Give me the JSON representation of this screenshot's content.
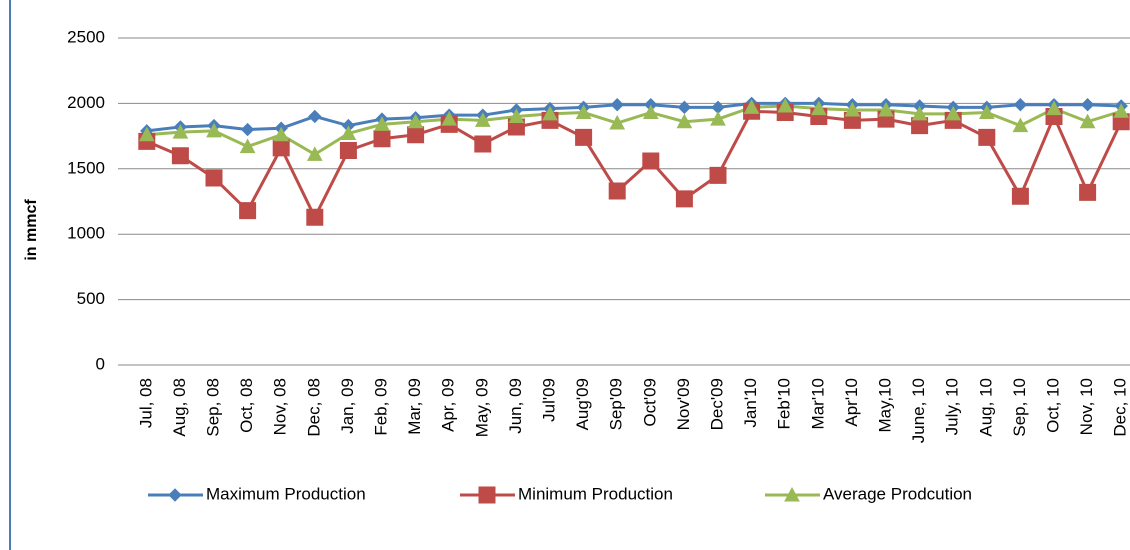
{
  "chart_data": {
    "type": "line",
    "y_label": "in mmcf",
    "categories": [
      "Jul, 08",
      "Aug, 08",
      "Sep, 08",
      "Oct, 08",
      "Nov, 08",
      "Dec, 08",
      "Jan, 09",
      "Feb, 09",
      "Mar, 09",
      "Apr, 09",
      "May, 09",
      "Jun, 09",
      "Jul'09",
      "Aug'09",
      "Sep'09",
      "Oct'09",
      "Nov'09",
      "Dec'09",
      "Jan'10",
      "Feb'10",
      "Mar'10",
      "Apr'10",
      "May,10",
      "June, 10",
      "July, 10",
      "Aug, 10",
      "Sep, 10",
      "Oct, 10",
      "Nov, 10",
      "Dec, 10"
    ],
    "series": [
      {
        "name": "Maximum Production",
        "color": "#4a7ebb",
        "marker": "diamond",
        "values": [
          1790,
          1820,
          1830,
          1800,
          1810,
          1900,
          1830,
          1880,
          1890,
          1910,
          1910,
          1950,
          1960,
          1970,
          1990,
          1990,
          1970,
          1970,
          2000,
          2000,
          2000,
          1990,
          1990,
          1980,
          1970,
          1970,
          1990,
          1990,
          1990,
          1980
        ]
      },
      {
        "name": "Minimum Production",
        "color": "#be4b48",
        "marker": "square",
        "values": [
          1710,
          1600,
          1430,
          1180,
          1660,
          1130,
          1640,
          1730,
          1760,
          1840,
          1690,
          1820,
          1870,
          1740,
          1330,
          1560,
          1270,
          1450,
          1940,
          1930,
          1900,
          1870,
          1880,
          1830,
          1870,
          1740,
          1290,
          1900,
          1320,
          1860
        ]
      },
      {
        "name": "Average Prodcution",
        "color": "#98b954",
        "marker": "triangle",
        "values": [
          1760,
          1780,
          1790,
          1670,
          1760,
          1610,
          1770,
          1840,
          1860,
          1880,
          1870,
          1900,
          1920,
          1930,
          1850,
          1930,
          1860,
          1880,
          1970,
          1980,
          1960,
          1950,
          1950,
          1920,
          1920,
          1930,
          1830,
          1960,
          1860,
          1940
        ]
      }
    ],
    "ylim": [
      0,
      2500
    ],
    "yticks": [
      0,
      500,
      1000,
      1500,
      2000,
      2500
    ],
    "grid": true
  }
}
